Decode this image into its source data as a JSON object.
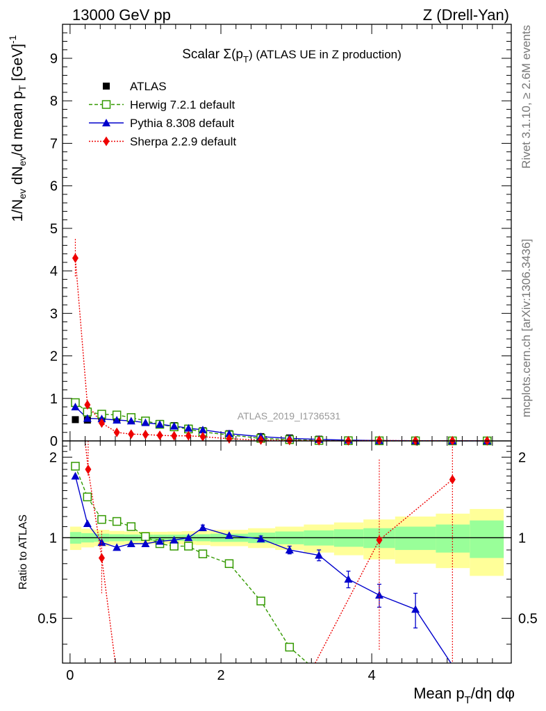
{
  "header": {
    "left": "13000 GeV pp",
    "right": "Z (Drell-Yan)"
  },
  "side_text": {
    "top": "Rivet 3.1.10, ≥ 2.6M events",
    "bottom": "mcplots.cern.ch [arXiv:1306.3436]"
  },
  "colors": {
    "atlas": "#000000",
    "herwig": "#339900",
    "pythia": "#0000cc",
    "sherpa": "#ee0000",
    "band_inner": "#99ff99",
    "band_outer": "#ffff99"
  },
  "chart_data": [
    {
      "type": "scatter",
      "panel": "main",
      "title_main": "Scalar Σ(p",
      "title_sub": "T",
      "title_tail": ") (ATLAS UE in Z production)",
      "watermark": "ATLAS_2019_I1736531",
      "ylabel": "1/N_ev dN_ev/d mean p_T [GeV]^-1",
      "xlim": [
        -0.1,
        5.85
      ],
      "ylim": [
        0,
        9.8
      ],
      "yticks": [
        0,
        1,
        2,
        3,
        4,
        5,
        6,
        7,
        8,
        9
      ],
      "yticklabels": [
        "0",
        "1",
        "2",
        "3",
        "4",
        "5",
        "6",
        "7",
        "8",
        "9"
      ],
      "legend": [
        "ATLAS",
        "Herwig 7.2.1 default",
        "Pythia 8.308 default",
        "Sherpa 2.2.9 default"
      ],
      "x": [
        0.07,
        0.23,
        0.42,
        0.62,
        0.81,
        1.0,
        1.19,
        1.38,
        1.57,
        1.76,
        2.11,
        2.53,
        2.91,
        3.3,
        3.69,
        4.1,
        4.58,
        5.07,
        5.53
      ],
      "series": [
        {
          "name": "ATLAS",
          "values": [
            0.5,
            0.49,
            0.55,
            0.53,
            0.5,
            0.46,
            0.41,
            0.36,
            0.3,
            0.24,
            0.17,
            0.1,
            0.07,
            0.04,
            0.025,
            0.012,
            0.006,
            0.003,
            0.0015
          ]
        },
        {
          "name": "Herwig 7.2.1 default",
          "values": [
            0.9,
            0.68,
            0.63,
            0.61,
            0.55,
            0.47,
            0.39,
            0.33,
            0.28,
            0.21,
            0.14,
            0.06,
            0.03,
            0.01,
            0.004,
            0.002,
            0.001,
            0.0005,
            0.0002
          ]
        },
        {
          "name": "Pythia 8.308 default",
          "values": [
            0.8,
            0.53,
            0.52,
            0.49,
            0.47,
            0.43,
            0.39,
            0.35,
            0.3,
            0.26,
            0.17,
            0.1,
            0.06,
            0.035,
            0.018,
            0.008,
            0.004,
            0.002,
            0.001
          ]
        },
        {
          "name": "Sherpa 2.2.9 default",
          "values": [
            4.3,
            0.85,
            0.42,
            0.2,
            0.16,
            0.15,
            0.13,
            0.12,
            0.12,
            0.1,
            0.05,
            0.02,
            0.01,
            0.005,
            0.003,
            0.012,
            0.004,
            0.005,
            0.002
          ]
        }
      ]
    },
    {
      "type": "line",
      "panel": "ratio",
      "ylabel": "Ratio to ATLAS",
      "xlabel_main": "Mean p",
      "xlabel_sub": "T",
      "xlabel_tail": "/dη dφ",
      "xlim": [
        -0.1,
        5.85
      ],
      "ylim": [
        0.34,
        2.3
      ],
      "xticks": [
        0,
        2,
        4
      ],
      "xticklabels": [
        "0",
        "2",
        "4"
      ],
      "yticks": [
        0.5,
        1,
        2
      ],
      "yticklabels": [
        "0.5",
        "1",
        "2"
      ],
      "band_edges": [
        0,
        0.15,
        0.32,
        0.52,
        0.72,
        0.91,
        1.1,
        1.29,
        1.48,
        1.67,
        1.86,
        2.36,
        2.72,
        3.1,
        3.5,
        3.89,
        4.31,
        4.85,
        5.3,
        5.75
      ],
      "band_inner": [
        0.05,
        0.04,
        0.035,
        0.03,
        0.028,
        0.027,
        0.027,
        0.027,
        0.028,
        0.03,
        0.035,
        0.045,
        0.055,
        0.065,
        0.075,
        0.085,
        0.1,
        0.12,
        0.16
      ],
      "band_outer": [
        0.1,
        0.08,
        0.07,
        0.06,
        0.055,
        0.052,
        0.052,
        0.054,
        0.058,
        0.062,
        0.07,
        0.085,
        0.1,
        0.12,
        0.14,
        0.17,
        0.2,
        0.23,
        0.28
      ],
      "herwig": {
        "x": [
          0.07,
          0.23,
          0.42,
          0.62,
          0.81,
          1.0,
          1.19,
          1.38,
          1.57,
          1.76,
          2.11,
          2.53,
          2.91
        ],
        "y": [
          1.85,
          1.42,
          1.17,
          1.15,
          1.1,
          1.01,
          0.95,
          0.93,
          0.93,
          0.87,
          0.8,
          0.58,
          0.39
        ],
        "line_end": [
          3.15,
          0.32
        ]
      },
      "pythia": {
        "x": [
          0.07,
          0.23,
          0.42,
          0.62,
          0.81,
          1.0,
          1.19,
          1.38,
          1.57,
          1.76,
          2.11,
          2.53,
          2.91,
          3.3,
          3.69,
          4.1,
          4.58
        ],
        "y": [
          1.7,
          1.13,
          0.96,
          0.92,
          0.95,
          0.95,
          0.97,
          0.98,
          1.0,
          1.09,
          1.02,
          0.99,
          0.9,
          0.86,
          0.7,
          0.61,
          0.54
        ],
        "err": [
          0.02,
          0.02,
          0.015,
          0.015,
          0.015,
          0.015,
          0.015,
          0.015,
          0.02,
          0.025,
          0.02,
          0.025,
          0.03,
          0.04,
          0.05,
          0.06,
          0.08
        ],
        "line_end": [
          5.05,
          0.34
        ]
      },
      "sherpa": {
        "x": [
          0.24,
          0.42,
          4.1,
          5.07
        ],
        "y": [
          1.8,
          0.84,
          0.98,
          1.65
        ],
        "err_lo": [
          0.1,
          0.22,
          0.6,
          1.4
        ],
        "err_hi": [
          0.7,
          0.22,
          0.98,
          1.4
        ],
        "curve": [
          [
            0.2,
            2.35
          ],
          [
            0.24,
            1.8
          ],
          [
            0.42,
            0.84
          ],
          [
            0.6,
            0.34
          ]
        ],
        "curve2": [
          [
            3.25,
            0.34
          ],
          [
            4.1,
            0.98
          ],
          [
            5.07,
            1.65
          ]
        ]
      }
    }
  ]
}
